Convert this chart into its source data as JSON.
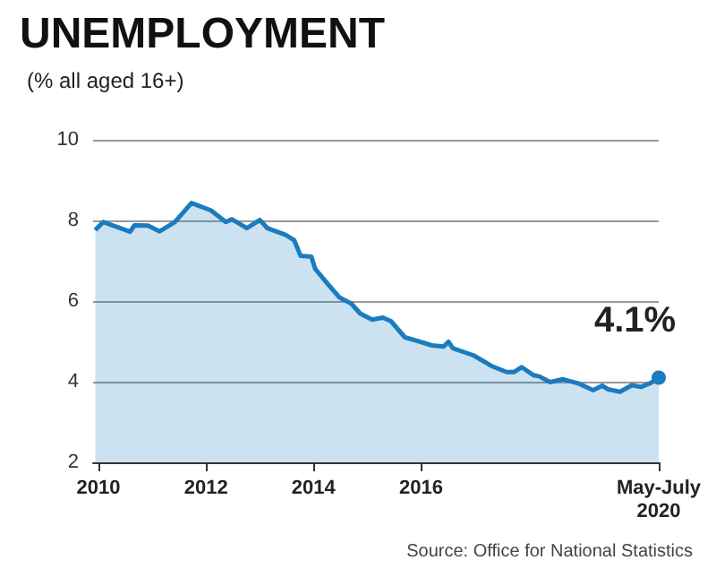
{
  "chart_data": {
    "type": "area",
    "title": "UNEMPLOYMENT",
    "subtitle": "(% all aged 16+)",
    "x": [
      2009.94,
      2010.09,
      2010.59,
      2010.67,
      2010.92,
      2011.14,
      2011.42,
      2011.73,
      2012.09,
      2012.37,
      2012.48,
      2012.76,
      2013.0,
      2013.14,
      2013.48,
      2013.64,
      2013.76,
      2013.96,
      2014.03,
      2014.26,
      2014.48,
      2014.7,
      2014.87,
      2015.09,
      2015.29,
      2015.44,
      2015.7,
      2015.98,
      2016.2,
      2016.42,
      2016.51,
      2016.59,
      2016.98,
      2017.31,
      2017.59,
      2017.73,
      2017.87,
      2018.09,
      2018.2,
      2018.4,
      2018.64,
      2018.92,
      2019.2,
      2019.37,
      2019.48,
      2019.7,
      2019.92,
      2020.09,
      2020.26,
      2020.42
    ],
    "series": [
      {
        "color": "#1b7bbf",
        "values": [
          7.76,
          7.96,
          7.72,
          7.88,
          7.87,
          7.73,
          7.96,
          8.43,
          8.25,
          7.96,
          8.03,
          7.81,
          8.01,
          7.81,
          7.64,
          7.51,
          7.12,
          7.1,
          6.8,
          6.43,
          6.09,
          5.94,
          5.69,
          5.54,
          5.59,
          5.5,
          5.1,
          4.99,
          4.9,
          4.87,
          4.99,
          4.83,
          4.65,
          4.39,
          4.24,
          4.24,
          4.36,
          4.16,
          4.13,
          3.99,
          4.06,
          3.96,
          3.79,
          3.9,
          3.81,
          3.75,
          3.91,
          3.87,
          3.96,
          4.1
        ]
      }
    ],
    "xlim": [
      2009.9,
      2020.42
    ],
    "xticks": [
      2010,
      2012,
      2014,
      2016,
      {
        "value": 2020.42,
        "label": "May-July\n2020"
      }
    ],
    "ylim": [
      2,
      10
    ],
    "yticks": [
      2,
      4,
      6,
      8,
      10
    ],
    "grid": "y",
    "annotations": [
      {
        "text": "4.1%",
        "x": 2020.42,
        "y": 4.1
      },
      "Source: Office for National Statistics"
    ]
  }
}
